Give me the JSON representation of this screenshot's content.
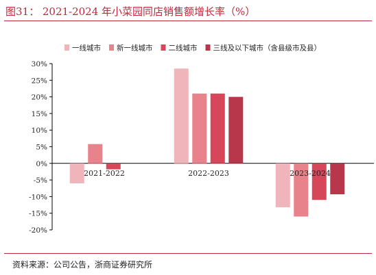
{
  "header": {
    "title": "图31：  2021-2024 年小菜园同店销售额增长率（%）"
  },
  "footer": {
    "source": "资料来源：公司公告，浙商证券研究所"
  },
  "colors": {
    "accent": "#c0283a",
    "series": [
      "#f0b5ba",
      "#e8838c",
      "#d7475a",
      "#b9374b"
    ]
  },
  "chart_data": {
    "type": "bar",
    "categories": [
      "2021-2022",
      "2022-2023",
      "2023-2024"
    ],
    "series": [
      {
        "name": "一线城市",
        "values": [
          -6,
          28.5,
          -13.2
        ]
      },
      {
        "name": "新一线城市",
        "values": [
          5.8,
          21,
          -16
        ]
      },
      {
        "name": "二线城市",
        "values": [
          -1.8,
          21,
          -11
        ]
      },
      {
        "name": "三线及以下城市（含县级市及县）",
        "values": [
          null,
          20,
          -9.3
        ]
      }
    ],
    "ylim": [
      -20,
      30
    ],
    "yticks": [
      -20,
      -15,
      -10,
      -5,
      0,
      5,
      10,
      15,
      20,
      25,
      30
    ],
    "ytick_labels": [
      "-20%",
      "-15%",
      "-10%",
      "-5%",
      "0%",
      "5%",
      "10%",
      "15%",
      "20%",
      "25%",
      "30%"
    ],
    "legend_position": "top",
    "grid": false
  }
}
